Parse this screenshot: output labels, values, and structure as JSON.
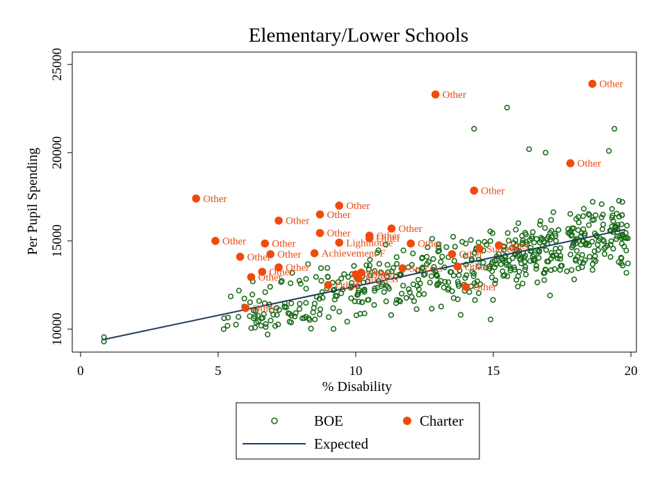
{
  "chart_data": {
    "type": "scatter",
    "title": "Elementary/Lower Schools",
    "xlabel": "% Disability",
    "ylabel": "Per Pupil Spending",
    "xlim": [
      -0.3,
      20.2
    ],
    "ylim": [
      8700,
      25700
    ],
    "xticks": [
      0,
      5,
      10,
      15,
      20
    ],
    "yticks": [
      10000,
      15000,
      20000,
      25000
    ],
    "colors": {
      "boe": "#1a6b1a",
      "charter": "#f04a0c",
      "expected": "#1f3b5c",
      "charter_label": "#e84a14"
    },
    "legend": {
      "boe": "BOE",
      "charter": "Charter",
      "expected": "Expected"
    },
    "expected_line": {
      "x": [
        0.8,
        19.8
      ],
      "y": [
        9400,
        15650
      ]
    },
    "series": [
      {
        "name": "Charter",
        "points": [
          {
            "x": 4.2,
            "y": 17400,
            "label": "Other"
          },
          {
            "x": 4.9,
            "y": 15000,
            "label": "Other"
          },
          {
            "x": 5.8,
            "y": 14100,
            "label": "Other"
          },
          {
            "x": 6.0,
            "y": 11200,
            "label": "Other"
          },
          {
            "x": 6.2,
            "y": 12950,
            "label": "Other"
          },
          {
            "x": 6.6,
            "y": 13250,
            "label": "Other"
          },
          {
            "x": 6.7,
            "y": 14850,
            "label": "Other"
          },
          {
            "x": 6.9,
            "y": 14250,
            "label": "Other"
          },
          {
            "x": 7.2,
            "y": 16150,
            "label": "Other"
          },
          {
            "x": 7.2,
            "y": 13500,
            "label": "Other"
          },
          {
            "x": 8.5,
            "y": 14300,
            "label": "Achievement F"
          },
          {
            "x": 8.7,
            "y": 16500,
            "label": "Other"
          },
          {
            "x": 8.7,
            "y": 15450,
            "label": "Other"
          },
          {
            "x": 9.0,
            "y": 12500,
            "label": "Other"
          },
          {
            "x": 9.4,
            "y": 17000,
            "label": "Other"
          },
          {
            "x": 9.4,
            "y": 14900,
            "label": "Lighthouse"
          },
          {
            "x": 10.0,
            "y": 13100,
            "label": "Achieve"
          },
          {
            "x": 10.1,
            "y": 12850,
            "label": "Success"
          },
          {
            "x": 10.2,
            "y": 13200,
            "label": "Other"
          },
          {
            "x": 10.5,
            "y": 15300,
            "label": "Other"
          },
          {
            "x": 10.5,
            "y": 15150,
            "label": "Other"
          },
          {
            "x": 11.3,
            "y": 15700,
            "label": "Other"
          },
          {
            "x": 11.7,
            "y": 13450,
            "label": "Success"
          },
          {
            "x": 12.0,
            "y": 14850,
            "label": "Other"
          },
          {
            "x": 12.9,
            "y": 23300,
            "label": "Other"
          },
          {
            "x": 13.5,
            "y": 14250,
            "label": "Other"
          },
          {
            "x": 13.7,
            "y": 13550,
            "label": "Other"
          },
          {
            "x": 14.0,
            "y": 12400,
            "label": "Other"
          },
          {
            "x": 14.3,
            "y": 17850,
            "label": "Other"
          },
          {
            "x": 14.5,
            "y": 14550,
            "label": "Success"
          },
          {
            "x": 15.2,
            "y": 14750,
            "label": "Other"
          },
          {
            "x": 17.8,
            "y": 19400,
            "label": "Other"
          },
          {
            "x": 18.6,
            "y": 23900,
            "label": "Other"
          }
        ]
      },
      {
        "name": "BOE",
        "description": "Approximately 560 public school points clustered between 5% and 20% disability and 9,700 to 22,500 per pupil spending, scattered around the expected line.",
        "notable_points": [
          {
            "x": 0.85,
            "y": 9550
          },
          {
            "x": 0.85,
            "y": 9300
          },
          {
            "x": 15.5,
            "y": 22550
          },
          {
            "x": 14.3,
            "y": 21350
          },
          {
            "x": 19.4,
            "y": 21350
          },
          {
            "x": 16.3,
            "y": 20200
          },
          {
            "x": 16.9,
            "y": 20000
          },
          {
            "x": 19.2,
            "y": 20100
          },
          {
            "x": 5.2,
            "y": 10000
          },
          {
            "x": 6.8,
            "y": 9700
          },
          {
            "x": 14.9,
            "y": 10550
          }
        ]
      }
    ]
  }
}
